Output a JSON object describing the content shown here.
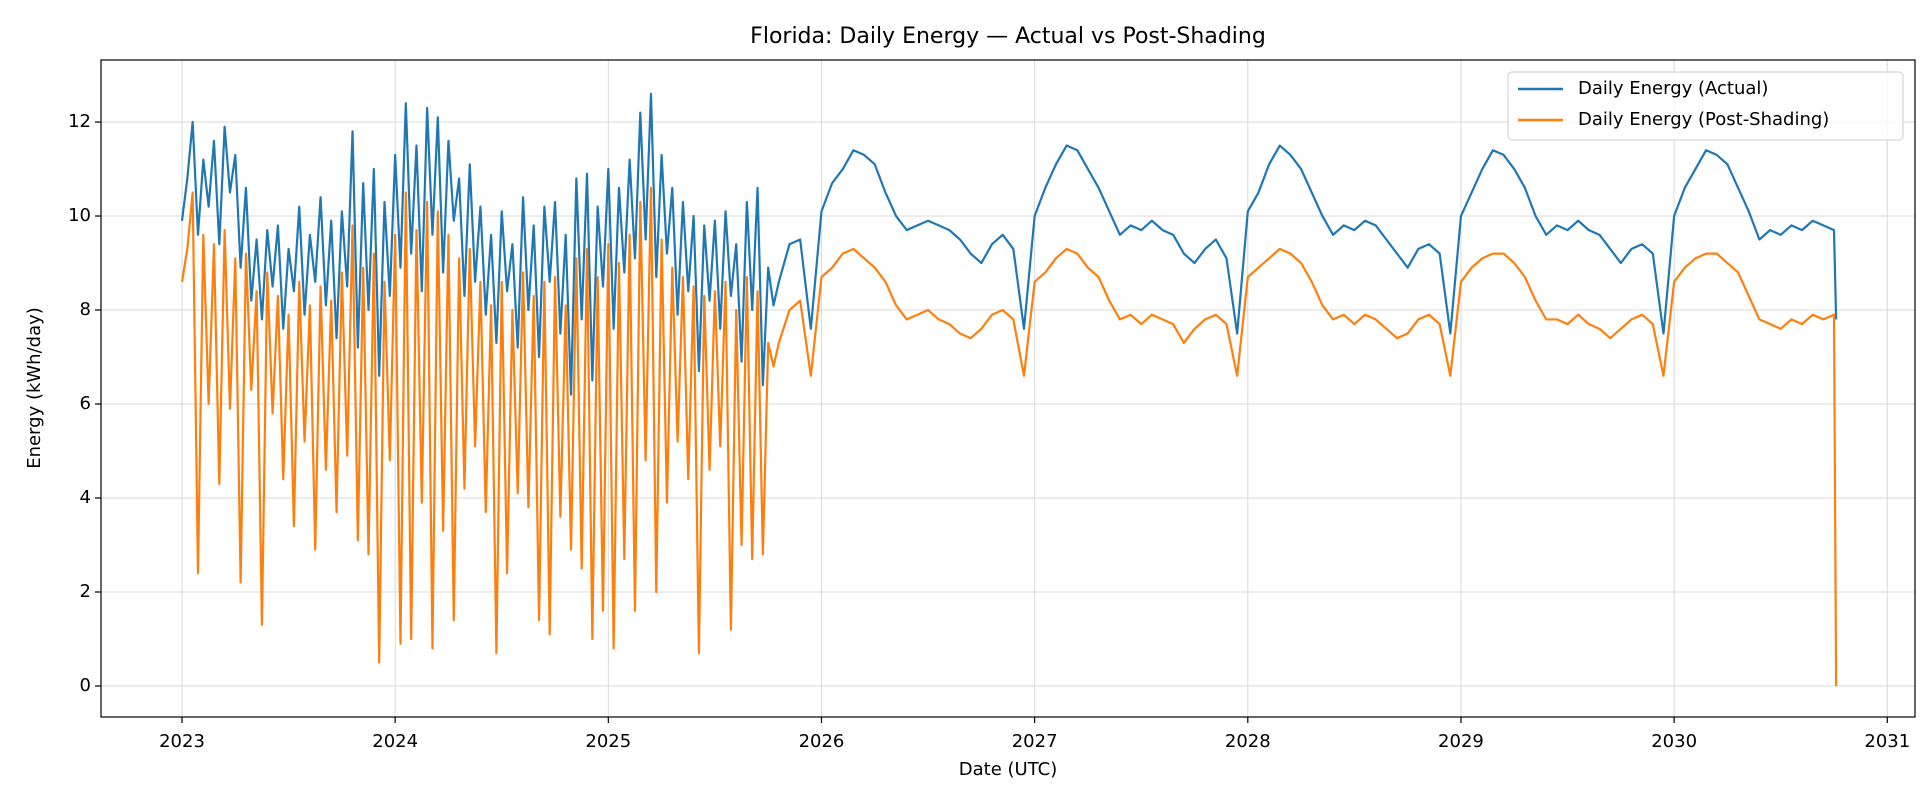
{
  "chart_data": {
    "type": "line",
    "title": "Florida: Daily Energy — Actual vs Post-Shading",
    "x_label": "Date (UTC)",
    "y_label": "Energy (kWh/day)",
    "xlim": [
      2022.62,
      2031.13
    ],
    "xticks": [
      2023,
      2024,
      2025,
      2026,
      2027,
      2028,
      2029,
      2030,
      2031
    ],
    "ylim": [
      -0.66,
      13.32
    ],
    "yticks": [
      0,
      2,
      4,
      6,
      8,
      10,
      12
    ],
    "grid": true,
    "legend": "upper right",
    "x": [
      2023,
      2023.025,
      2023.05,
      2023.075,
      2023.1,
      2023.125,
      2023.15,
      2023.175,
      2023.2,
      2023.225,
      2023.25,
      2023.275,
      2023.3,
      2023.325,
      2023.35,
      2023.375,
      2023.4,
      2023.425,
      2023.45,
      2023.475,
      2023.5,
      2023.525,
      2023.55,
      2023.575,
      2023.6,
      2023.625,
      2023.65,
      2023.675,
      2023.7,
      2023.725,
      2023.75,
      2023.775,
      2023.8,
      2023.825,
      2023.85,
      2023.875,
      2023.9,
      2023.925,
      2023.95,
      2023.975,
      2024,
      2024.025,
      2024.05,
      2024.075,
      2024.1,
      2024.125,
      2024.15,
      2024.175,
      2024.2,
      2024.225,
      2024.25,
      2024.275,
      2024.3,
      2024.325,
      2024.35,
      2024.375,
      2024.4,
      2024.425,
      2024.45,
      2024.475,
      2024.5,
      2024.525,
      2024.55,
      2024.575,
      2024.6,
      2024.625,
      2024.65,
      2024.675,
      2024.7,
      2024.725,
      2024.75,
      2024.775,
      2024.8,
      2024.825,
      2024.85,
      2024.875,
      2024.9,
      2024.925,
      2024.95,
      2024.975,
      2025,
      2025.025,
      2025.05,
      2025.075,
      2025.1,
      2025.125,
      2025.15,
      2025.175,
      2025.2,
      2025.225,
      2025.25,
      2025.275,
      2025.3,
      2025.325,
      2025.35,
      2025.375,
      2025.4,
      2025.425,
      2025.45,
      2025.475,
      2025.5,
      2025.525,
      2025.55,
      2025.575,
      2025.6,
      2025.625,
      2025.65,
      2025.675,
      2025.7,
      2025.725,
      2025.75,
      2025.775,
      2025.8,
      2025.85,
      2025.9,
      2025.95,
      2026,
      2026.05,
      2026.1,
      2026.15,
      2026.2,
      2026.25,
      2026.3,
      2026.35,
      2026.4,
      2026.45,
      2026.5,
      2026.55,
      2026.6,
      2026.65,
      2026.7,
      2026.75,
      2026.8,
      2026.85,
      2026.9,
      2026.95,
      2027,
      2027.05,
      2027.1,
      2027.15,
      2027.2,
      2027.25,
      2027.3,
      2027.35,
      2027.4,
      2027.45,
      2027.5,
      2027.55,
      2027.6,
      2027.65,
      2027.7,
      2027.75,
      2027.8,
      2027.85,
      2027.9,
      2027.95,
      2028,
      2028.05,
      2028.1,
      2028.15,
      2028.2,
      2028.25,
      2028.3,
      2028.35,
      2028.4,
      2028.45,
      2028.5,
      2028.55,
      2028.6,
      2028.65,
      2028.7,
      2028.75,
      2028.8,
      2028.85,
      2028.9,
      2028.95,
      2029,
      2029.05,
      2029.1,
      2029.15,
      2029.2,
      2029.25,
      2029.3,
      2029.35,
      2029.4,
      2029.45,
      2029.5,
      2029.55,
      2029.6,
      2029.65,
      2029.7,
      2029.75,
      2029.8,
      2029.85,
      2029.9,
      2029.95,
      2030,
      2030.05,
      2030.1,
      2030.15,
      2030.2,
      2030.25,
      2030.3,
      2030.35,
      2030.4,
      2030.45,
      2030.5,
      2030.55,
      2030.6,
      2030.65,
      2030.7,
      2030.75,
      2030.76
    ],
    "series": [
      {
        "name": "Daily Energy (Actual)",
        "color": "#1f77b4",
        "values": [
          9.9,
          10.8,
          12.0,
          9.6,
          11.2,
          10.2,
          11.6,
          9.4,
          11.9,
          10.5,
          11.3,
          8.9,
          10.6,
          8.2,
          9.5,
          7.8,
          9.7,
          8.5,
          9.8,
          7.6,
          9.3,
          8.4,
          10.2,
          7.9,
          9.6,
          8.6,
          10.4,
          8.1,
          9.9,
          7.4,
          10.1,
          8.5,
          11.8,
          7.2,
          10.7,
          8.0,
          11.0,
          6.6,
          10.3,
          8.3,
          11.3,
          8.9,
          12.4,
          9.2,
          11.5,
          8.4,
          12.3,
          9.6,
          12.1,
          8.8,
          11.6,
          9.9,
          10.8,
          8.3,
          11.1,
          8.6,
          10.2,
          7.9,
          9.6,
          7.3,
          10.1,
          8.4,
          9.4,
          7.2,
          10.4,
          8.0,
          9.8,
          7.0,
          10.2,
          8.6,
          10.3,
          7.5,
          9.6,
          6.2,
          10.8,
          7.8,
          10.9,
          6.5,
          10.2,
          8.5,
          11.0,
          7.6,
          10.6,
          8.8,
          11.2,
          9.1,
          12.2,
          9.5,
          12.6,
          8.7,
          11.3,
          9.2,
          10.6,
          7.9,
          10.3,
          8.4,
          10.0,
          6.7,
          9.8,
          8.2,
          9.9,
          7.6,
          10.1,
          8.3,
          9.4,
          6.9,
          10.3,
          8.0,
          10.6,
          6.4,
          8.9,
          8.1,
          8.6,
          9.4,
          9.5,
          7.6,
          10.1,
          10.7,
          11.0,
          11.4,
          11.3,
          11.1,
          10.5,
          10.0,
          9.7,
          9.8,
          9.9,
          9.8,
          9.7,
          9.5,
          9.2,
          9.0,
          9.4,
          9.6,
          9.3,
          7.6,
          10.0,
          10.6,
          11.1,
          11.5,
          11.4,
          11.0,
          10.6,
          10.1,
          9.6,
          9.8,
          9.7,
          9.9,
          9.7,
          9.6,
          9.2,
          9.0,
          9.3,
          9.5,
          9.1,
          7.5,
          10.1,
          10.5,
          11.1,
          11.5,
          11.3,
          11.0,
          10.5,
          10.0,
          9.6,
          9.8,
          9.7,
          9.9,
          9.8,
          9.5,
          9.2,
          8.9,
          9.3,
          9.4,
          9.2,
          7.5,
          10.0,
          10.5,
          11.0,
          11.4,
          11.3,
          11.0,
          10.6,
          10.0,
          9.6,
          9.8,
          9.7,
          9.9,
          9.7,
          9.6,
          9.3,
          9.0,
          9.3,
          9.4,
          9.2,
          7.5,
          10.0,
          10.6,
          11.0,
          11.4,
          11.3,
          11.1,
          10.6,
          10.1,
          9.5,
          9.7,
          9.6,
          9.8,
          9.7,
          9.9,
          9.8,
          9.7,
          7.8
        ]
      },
      {
        "name": "Daily Energy (Post-Shading)",
        "color": "#ff7f0e",
        "values": [
          8.6,
          9.3,
          10.5,
          2.4,
          9.6,
          6.0,
          9.4,
          4.3,
          9.7,
          5.9,
          9.1,
          2.2,
          9.2,
          6.3,
          8.4,
          1.3,
          8.8,
          5.8,
          8.3,
          4.4,
          7.9,
          3.4,
          8.6,
          5.2,
          8.1,
          2.9,
          8.5,
          4.6,
          8.2,
          3.7,
          8.8,
          4.9,
          9.8,
          3.1,
          8.9,
          2.8,
          9.2,
          0.5,
          8.6,
          4.8,
          9.6,
          0.9,
          10.5,
          1.0,
          9.7,
          3.9,
          10.3,
          0.8,
          10.1,
          3.3,
          9.6,
          1.4,
          9.1,
          4.2,
          9.3,
          5.1,
          8.6,
          3.7,
          8.1,
          0.7,
          8.6,
          2.4,
          8.0,
          4.1,
          8.8,
          3.8,
          8.3,
          1.4,
          8.6,
          1.1,
          8.7,
          3.6,
          8.1,
          2.9,
          9.1,
          2.5,
          9.3,
          1.0,
          8.7,
          1.6,
          9.4,
          0.8,
          9.0,
          2.7,
          9.6,
          1.6,
          10.3,
          4.8,
          10.6,
          2.0,
          9.5,
          3.9,
          8.9,
          5.2,
          8.7,
          4.4,
          8.5,
          0.7,
          8.3,
          4.6,
          8.4,
          5.1,
          8.6,
          1.2,
          8.0,
          3.0,
          8.7,
          2.7,
          8.4,
          2.8,
          7.3,
          6.8,
          7.3,
          8.0,
          8.2,
          6.6,
          8.7,
          8.9,
          9.2,
          9.3,
          9.1,
          8.9,
          8.6,
          8.1,
          7.8,
          7.9,
          8.0,
          7.8,
          7.7,
          7.5,
          7.4,
          7.6,
          7.9,
          8.0,
          7.8,
          6.6,
          8.6,
          8.8,
          9.1,
          9.3,
          9.2,
          8.9,
          8.7,
          8.2,
          7.8,
          7.9,
          7.7,
          7.9,
          7.8,
          7.7,
          7.3,
          7.6,
          7.8,
          7.9,
          7.7,
          6.6,
          8.7,
          8.9,
          9.1,
          9.3,
          9.2,
          9.0,
          8.6,
          8.1,
          7.8,
          7.9,
          7.7,
          7.9,
          7.8,
          7.6,
          7.4,
          7.5,
          7.8,
          7.9,
          7.7,
          6.6,
          8.6,
          8.9,
          9.1,
          9.2,
          9.2,
          9.0,
          8.7,
          8.2,
          7.8,
          7.8,
          7.7,
          7.9,
          7.7,
          7.6,
          7.4,
          7.6,
          7.8,
          7.9,
          7.7,
          6.6,
          8.6,
          8.9,
          9.1,
          9.2,
          9.2,
          9.0,
          8.8,
          8.3,
          7.8,
          7.7,
          7.6,
          7.8,
          7.7,
          7.9,
          7.8,
          7.9,
          0.0
        ]
      }
    ]
  }
}
